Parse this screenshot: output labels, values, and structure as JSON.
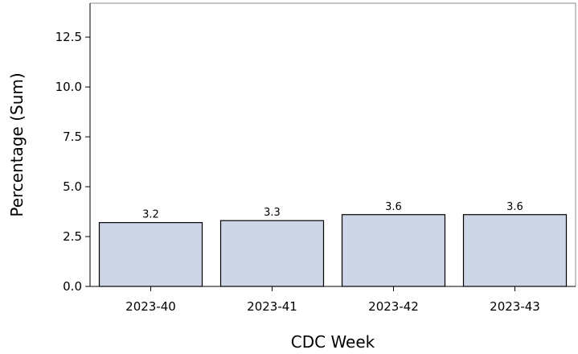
{
  "chart_data": {
    "type": "bar",
    "categories": [
      "2023-40",
      "2023-41",
      "2023-42",
      "2023-43"
    ],
    "values": [
      3.2,
      3.3,
      3.6,
      3.6
    ],
    "data_labels": [
      "3.2",
      "3.3",
      "3.6",
      "3.6"
    ],
    "xlabel": "CDC Week",
    "ylabel": "Percentage (Sum)",
    "ylim": [
      0,
      14.2
    ],
    "yticks": [
      0,
      2.5,
      5,
      7.5,
      10,
      12.5
    ],
    "ytick_labels": [
      "0.0",
      "2.5",
      "5.0",
      "7.5",
      "10.0",
      "12.5"
    ],
    "grid": false,
    "legend": "none",
    "bar_color": "#ccd6e6",
    "bar_edge_color": "#000000"
  }
}
